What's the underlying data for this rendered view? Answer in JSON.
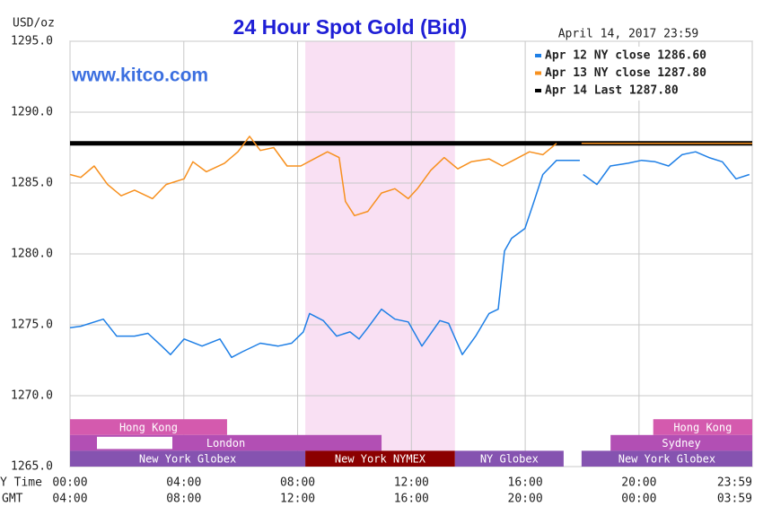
{
  "chart_data": {
    "type": "line",
    "title": "24 Hour Spot Gold (Bid)",
    "y_label": "USD/oz",
    "date_label": "April 14, 2017 23:59",
    "watermark": "www.kitco.com",
    "x_label": "Y Time",
    "x2_label": "GMT",
    "xlim": [
      0,
      23.98
    ],
    "ylim": [
      1265,
      1295
    ],
    "yticks": [
      {
        "value": 1265,
        "label": "1265.0"
      },
      {
        "value": 1270,
        "label": "1270.0"
      },
      {
        "value": 1275,
        "label": "1275.0"
      },
      {
        "value": 1280,
        "label": "1280.0"
      },
      {
        "value": 1285,
        "label": "1285.0"
      },
      {
        "value": 1290,
        "label": "1290.0"
      },
      {
        "value": 1295,
        "label": "1295.0"
      }
    ],
    "xticks": [
      {
        "value": 0,
        "label": "00:00"
      },
      {
        "value": 4,
        "label": "04:00"
      },
      {
        "value": 8,
        "label": "08:00"
      },
      {
        "value": 12,
        "label": "12:00"
      },
      {
        "value": 16,
        "label": "16:00"
      },
      {
        "value": 20,
        "label": "20:00"
      },
      {
        "value": 23.98,
        "label": "23:59"
      }
    ],
    "xticks_gmt": [
      {
        "value": 0,
        "label": "04:00"
      },
      {
        "value": 4,
        "label": "08:00"
      },
      {
        "value": 8,
        "label": "12:00"
      },
      {
        "value": 12,
        "label": "16:00"
      },
      {
        "value": 16,
        "label": "20:00"
      },
      {
        "value": 20,
        "label": "00:00"
      },
      {
        "value": 23.98,
        "label": "03:59"
      }
    ],
    "grid": true,
    "highlight": [
      8.27,
      13.53
    ],
    "highlight_color": "#f9e0f3",
    "series": [
      {
        "name": "Apr 12 NY close 1286.60",
        "color": "#1e7fe6",
        "width": 1.5,
        "x": [
          0,
          0.38,
          1.17,
          1.64,
          2.27,
          2.74,
          3.22,
          3.53,
          4.01,
          4.64,
          5.27,
          5.68,
          6.06,
          6.69,
          7.32,
          7.79,
          8.2,
          8.42,
          8.9,
          9.37,
          9.84,
          10.16,
          10.47,
          10.95,
          11.42,
          11.89,
          12.37,
          13.0,
          13.31,
          13.79,
          14.26,
          14.73,
          15.05,
          15.27,
          15.52,
          15.99,
          16.31,
          16.62,
          17.1,
          17.92,
          17.95,
          18.04,
          18.52,
          18.99,
          19.62,
          20.09,
          20.57,
          21.04,
          21.51,
          21.99,
          22.46,
          22.93,
          23.41,
          23.88
        ],
        "values": [
          1274.8,
          1274.9,
          1275.4,
          1274.2,
          1274.2,
          1274.4,
          1273.5,
          1272.9,
          1274.0,
          1273.5,
          1274.0,
          1272.7,
          1273.1,
          1273.7,
          1273.5,
          1273.7,
          1274.5,
          1275.8,
          1275.3,
          1274.2,
          1274.5,
          1274.0,
          1274.8,
          1276.1,
          1275.4,
          1275.2,
          1273.5,
          1275.3,
          1275.1,
          1272.9,
          1274.2,
          1275.8,
          1276.1,
          1280.2,
          1281.1,
          1281.8,
          1283.7,
          1285.6,
          1286.6,
          1286.6,
          null,
          1285.6,
          1284.9,
          1286.2,
          1286.4,
          1286.6,
          1286.5,
          1286.2,
          1287.0,
          1287.2,
          1286.8,
          1286.5,
          1285.3,
          1285.6
        ]
      },
      {
        "name": "Apr 13 NY close 1287.80",
        "color": "#f7901e",
        "width": 1.5,
        "x": [
          0,
          0.38,
          0.85,
          1.32,
          1.8,
          2.27,
          2.9,
          3.38,
          4.01,
          4.32,
          4.79,
          5.43,
          5.9,
          6.31,
          6.69,
          7.16,
          7.63,
          8.11,
          8.58,
          9.05,
          9.46,
          9.68,
          10.0,
          10.47,
          10.95,
          11.42,
          11.89,
          12.21,
          12.68,
          13.15,
          13.63,
          14.1,
          14.73,
          15.2,
          15.68,
          16.15,
          16.62,
          17.1,
          17.5,
          17.98,
          23.98
        ],
        "values": [
          1285.6,
          1285.4,
          1286.2,
          1284.9,
          1284.1,
          1284.5,
          1283.9,
          1284.9,
          1285.3,
          1286.5,
          1285.8,
          1286.4,
          1287.2,
          1288.3,
          1287.3,
          1287.5,
          1286.2,
          1286.2,
          1286.7,
          1287.2,
          1286.8,
          1283.7,
          1282.7,
          1283.0,
          1284.3,
          1284.6,
          1283.9,
          1284.6,
          1285.9,
          1286.8,
          1286.0,
          1286.5,
          1286.7,
          1286.2,
          1286.7,
          1287.2,
          1287.0,
          1287.8,
          null,
          1287.8,
          1287.8
        ]
      },
      {
        "name": "Apr 14 Last 1287.80",
        "color": "#000000",
        "width": 5,
        "x": [
          0,
          23.98
        ],
        "values": [
          1287.8,
          1287.8
        ]
      }
    ],
    "session_rows": [
      [
        {
          "name": "Hong Kong",
          "start": 0,
          "end": 5.52,
          "color": "#d45aae"
        },
        {
          "name": "Hong Kong",
          "start": 20.5,
          "end": 23.98,
          "color": "#d45aae"
        }
      ],
      [
        {
          "name": "London",
          "start": 0,
          "end": 10.95,
          "color": "#b24fb4"
        },
        {
          "name": "Sydney",
          "start": 19.0,
          "end": 23.98,
          "color": "#b24fb4"
        }
      ],
      [
        {
          "name": "New York Globex",
          "start": 0,
          "end": 8.27,
          "color": "#8553b0"
        },
        {
          "name": "New York NYMEX",
          "start": 8.27,
          "end": 13.53,
          "color": "#8b0000"
        },
        {
          "name": "NY Globex",
          "start": 13.53,
          "end": 17.35,
          "color": "#8553b0"
        },
        {
          "name": "New York Globex",
          "start": 17.98,
          "end": 23.98,
          "color": "#8553b0"
        }
      ]
    ]
  }
}
